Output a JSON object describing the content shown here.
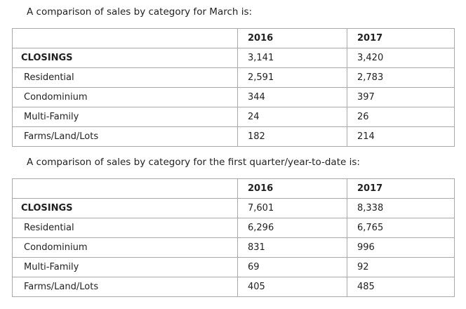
{
  "march": {
    "intro": "A comparison of sales by category for March is:",
    "header": [
      "",
      "2016",
      "2017"
    ],
    "total": {
      "label": "CLOSINGS",
      "y2016": "3,141",
      "y2017": "3,420"
    },
    "rows": [
      {
        "label": "Residential",
        "y2016": "2,591",
        "y2017": "2,783"
      },
      {
        "label": "Condominium",
        "y2016": "344",
        "y2017": "397"
      },
      {
        "label": "Multi-Family",
        "y2016": "24",
        "y2017": "26"
      },
      {
        "label": "Farms/Land/Lots",
        "y2016": "182",
        "y2017": "214"
      }
    ]
  },
  "ytd": {
    "intro": "A comparison of sales by category for the first quarter/year-to-date is:",
    "header": [
      "",
      "2016",
      "2017"
    ],
    "total": {
      "label": "CLOSINGS",
      "y2016": "7,601",
      "y2017": "8,338"
    },
    "rows": [
      {
        "label": "Residential",
        "y2016": "6,296",
        "y2017": "6,765"
      },
      {
        "label": "Condominium",
        "y2016": "831",
        "y2017": "996"
      },
      {
        "label": "Multi-Family",
        "y2016": "69",
        "y2017": "92"
      },
      {
        "label": "Farms/Land/Lots",
        "y2016": "405",
        "y2017": "485"
      }
    ]
  }
}
